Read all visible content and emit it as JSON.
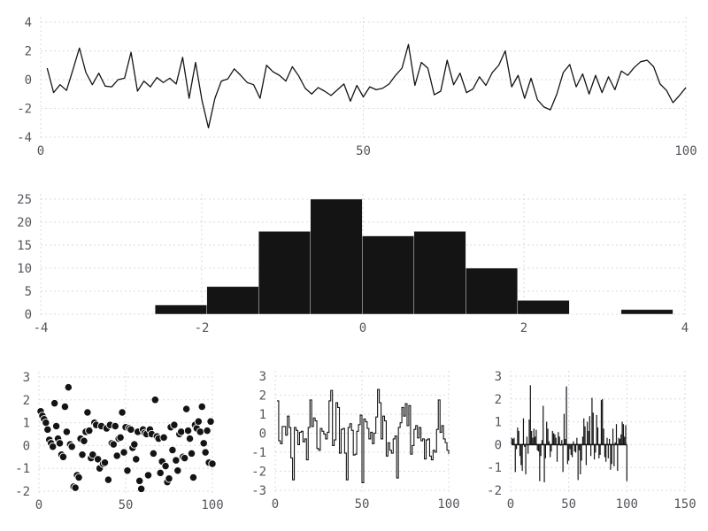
{
  "figure": {
    "background": "#ffffff",
    "grid_color": "#d9dbe8",
    "tick_label_color": "#54565b",
    "series_color": "#141414"
  },
  "chart_data": [
    {
      "id": "timeseries",
      "type": "line",
      "x_ticks": [
        0,
        50,
        100
      ],
      "y_ticks": [
        -4,
        -2,
        0,
        2,
        4
      ],
      "xlim": [
        0,
        100
      ],
      "ylim": [
        -4,
        4
      ],
      "x_start": 1,
      "x_step": 1,
      "values": [
        0.8,
        -0.9,
        -0.35,
        -0.75,
        0.7,
        2.2,
        0.5,
        -0.35,
        0.45,
        -0.45,
        -0.5,
        0.0,
        0.1,
        1.9,
        -0.8,
        -0.1,
        -0.5,
        0.15,
        -0.2,
        0.1,
        -0.3,
        1.55,
        -1.3,
        1.2,
        -1.45,
        -3.35,
        -1.3,
        -0.1,
        0.05,
        0.75,
        0.3,
        -0.2,
        -0.35,
        -1.3,
        1.0,
        0.55,
        0.3,
        -0.1,
        0.9,
        0.25,
        -0.6,
        -1.0,
        -0.55,
        -0.8,
        -1.1,
        -0.7,
        -0.3,
        -1.5,
        -0.4,
        -1.2,
        -0.5,
        -0.7,
        -0.6,
        -0.3,
        0.3,
        0.8,
        2.45,
        -0.4,
        1.2,
        0.8,
        -1.05,
        -0.8,
        1.35,
        -0.35,
        0.45,
        -0.9,
        -0.65,
        0.2,
        -0.4,
        0.5,
        1.0,
        2.0,
        -0.5,
        0.3,
        -1.3,
        0.1,
        -1.4,
        -1.9,
        -2.1,
        -1.0,
        0.5,
        1.05,
        -0.5,
        0.4,
        -1.0,
        0.3,
        -0.9,
        0.2,
        -0.7,
        0.6,
        0.3,
        0.85,
        1.25,
        1.35,
        0.9,
        -0.3,
        -0.75,
        -1.6,
        -1.1,
        -0.55
      ]
    },
    {
      "id": "histogram",
      "type": "bar",
      "x_ticks": [
        -4,
        -2,
        0,
        2,
        4
      ],
      "y_ticks": [
        0,
        5,
        10,
        15,
        20,
        25
      ],
      "xlim": [
        -4,
        4
      ],
      "ylim": [
        0,
        25
      ],
      "bin_start": -2.58,
      "bin_width": 0.643,
      "counts": [
        2,
        6,
        18,
        25,
        17,
        18,
        10,
        3,
        0,
        1
      ]
    },
    {
      "id": "scatter",
      "type": "scatter",
      "x_ticks": [
        0,
        50,
        100
      ],
      "y_ticks": [
        -2,
        -1,
        0,
        1,
        2,
        3
      ],
      "xlim": [
        0,
        100
      ],
      "ylim": [
        -2,
        3
      ],
      "x_start": 1,
      "x_step": 1,
      "values": [
        1.5,
        1.3,
        1.15,
        1.0,
        0.7,
        0.25,
        0.1,
        -0.05,
        1.85,
        0.85,
        0.3,
        0.1,
        -0.4,
        -0.5,
        1.7,
        0.6,
        2.55,
        0.05,
        -0.05,
        -1.8,
        -1.85,
        -1.3,
        -1.4,
        0.3,
        -0.4,
        0.2,
        0.6,
        1.45,
        0.65,
        -0.55,
        -0.4,
        1.0,
        0.9,
        -0.6,
        -1.0,
        0.85,
        -0.8,
        -0.75,
        0.75,
        -1.5,
        0.9,
        0.1,
        0.05,
        0.85,
        -0.45,
        0.3,
        0.35,
        1.45,
        -0.3,
        0.8,
        -1.1,
        0.75,
        0.7,
        -0.1,
        0.05,
        -0.6,
        0.6,
        -1.55,
        -1.9,
        0.7,
        0.55,
        0.5,
        -1.3,
        0.7,
        0.5,
        -0.35,
        2.0,
        0.4,
        0.3,
        -1.2,
        -0.7,
        0.35,
        -0.9,
        -1.6,
        -1.45,
        0.8,
        -0.2,
        0.9,
        -0.65,
        -1.1,
        0.5,
        0.6,
        -0.5,
        -0.55,
        1.6,
        0.65,
        0.3,
        -0.35,
        -1.4,
        0.9,
        0.75,
        1.05,
        0.6,
        1.7,
        0.1,
        -0.3,
        0.65,
        -0.75,
        1.05,
        -0.8
      ]
    },
    {
      "id": "step",
      "type": "line",
      "line_style": "step",
      "x_ticks": [
        0,
        50,
        100
      ],
      "y_ticks": [
        -3,
        -2,
        -1,
        0,
        1,
        2,
        3
      ],
      "xlim": [
        0,
        100
      ],
      "ylim": [
        -3,
        3
      ],
      "x_start": 1,
      "x_step": 1,
      "values": [
        1.7,
        -0.4,
        -0.55,
        0.35,
        0.35,
        -0.1,
        0.9,
        0.3,
        -1.3,
        -2.45,
        0.3,
        0.15,
        -0.6,
        0.05,
        0.1,
        -0.45,
        -0.3,
        -1.4,
        0.3,
        1.75,
        0.35,
        0.8,
        0.65,
        -0.8,
        -0.9,
        0.25,
        0.1,
        -0.05,
        -0.3,
        0.05,
        1.7,
        2.25,
        -0.65,
        -0.35,
        1.6,
        1.35,
        -1.05,
        0.2,
        0.25,
        -1.05,
        -2.45,
        0.3,
        0.5,
        0.15,
        -1.15,
        -1.1,
        0.1,
        0.45,
        0.95,
        -2.6,
        0.75,
        0.6,
        0.25,
        -0.3,
        0.05,
        -0.55,
        0.0,
        0.85,
        2.3,
        1.6,
        -0.3,
        0.9,
        0.65,
        -1.2,
        -0.5,
        -0.9,
        -1.05,
        -0.3,
        -0.15,
        -2.35,
        0.3,
        0.55,
        1.35,
        0.9,
        1.55,
        0.4,
        1.45,
        -1.1,
        -0.65,
        0.2,
        0.4,
        -0.25,
        0.3,
        -0.4,
        -0.3,
        -1.35,
        -0.35,
        -0.3,
        -1.2,
        -1.4,
        -0.9,
        -1.0,
        0.2,
        1.75,
        0.05,
        0.4,
        -0.3,
        -0.5,
        -0.9,
        -1.1
      ]
    },
    {
      "id": "stem",
      "type": "bar",
      "bar_style": "stem",
      "x_ticks": [
        0,
        50,
        100,
        150
      ],
      "y_ticks": [
        -2,
        -1,
        0,
        1,
        2,
        3
      ],
      "xlim": [
        0,
        150
      ],
      "ylim": [
        -2,
        3
      ],
      "x_start": 1,
      "x_step": 1,
      "values": [
        0.3,
        0.25,
        0.3,
        -1.2,
        -0.2,
        0.75,
        0.6,
        -0.5,
        -0.9,
        -1.15,
        1.15,
        -0.1,
        -1.3,
        0.35,
        -0.4,
        1.1,
        2.6,
        0.6,
        0.3,
        0.7,
        0.35,
        0.65,
        -0.25,
        -0.3,
        -1.6,
        -0.5,
        0.2,
        1.7,
        -1.65,
        -0.6,
        1.0,
        0.7,
        0.15,
        -0.55,
        -0.3,
        0.6,
        0.5,
        0.45,
        0.3,
        -0.75,
        0.55,
        0.35,
        -0.05,
        0.2,
        -1.2,
        1.35,
        0.25,
        2.55,
        -0.85,
        -0.7,
        -0.2,
        -0.45,
        -0.55,
        0.15,
        -0.3,
        -0.35,
        0.3,
        -1.55,
        -0.25,
        -1.3,
        -0.7,
        0.35,
        1.15,
        0.8,
        -0.9,
        1.0,
        0.6,
        1.25,
        -0.5,
        2.05,
        1.4,
        -0.65,
        -0.35,
        1.3,
        0.75,
        -0.6,
        -0.45,
        1.95,
        2.0,
        0.7,
        -0.55,
        -0.75,
        0.3,
        -0.6,
        0.25,
        -1.1,
        -0.85,
        0.7,
        -0.95,
        0.1,
        0.9,
        -1.15,
        0.3,
        0.25,
        0.45,
        1.0,
        0.9,
        0.35,
        0.85,
        -1.6
      ]
    }
  ]
}
